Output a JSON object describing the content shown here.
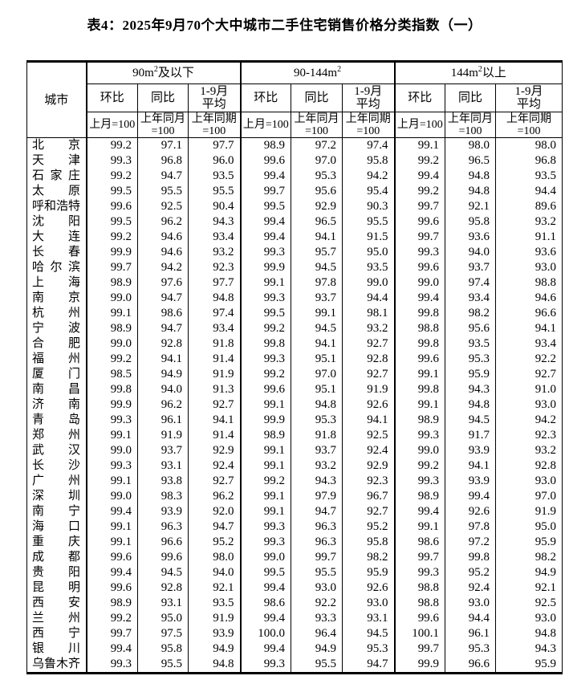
{
  "title": "表4：2025年9月70个大中城市二手住宅销售价格分类指数（一）",
  "table": {
    "city_header": "城市",
    "groups": [
      {
        "base": "90m",
        "sup": "2",
        "rest": "及以下"
      },
      {
        "base": "90-144m",
        "sup": "2",
        "rest": ""
      },
      {
        "base": "144m",
        "sup": "2",
        "rest": "以上"
      }
    ],
    "col_headers": {
      "mom": "环比",
      "yoy": "同比",
      "avg_l1": "1-9月",
      "avg_l2": "平均",
      "mom_base": "上月=100",
      "yoy_base_l1": "上年同月",
      "yoy_base_l2": "=100",
      "avg_base_l1": "上年同期",
      "avg_base_l2": "=100"
    },
    "rows": [
      {
        "city": "北京",
        "values": [
          "99.2",
          "97.1",
          "97.7",
          "98.9",
          "97.2",
          "97.4",
          "99.1",
          "98.0",
          "98.0"
        ]
      },
      {
        "city": "天津",
        "values": [
          "99.3",
          "96.8",
          "96.0",
          "99.6",
          "97.0",
          "95.8",
          "99.2",
          "96.5",
          "96.8"
        ]
      },
      {
        "city": "石家庄",
        "values": [
          "99.2",
          "94.7",
          "93.5",
          "99.4",
          "95.3",
          "94.2",
          "99.4",
          "94.8",
          "93.5"
        ]
      },
      {
        "city": "太原",
        "values": [
          "99.5",
          "95.5",
          "95.5",
          "99.7",
          "95.6",
          "95.4",
          "99.2",
          "94.8",
          "94.4"
        ]
      },
      {
        "city": "呼和浩特",
        "values": [
          "99.6",
          "92.5",
          "90.4",
          "99.5",
          "92.9",
          "90.3",
          "99.7",
          "92.1",
          "89.6"
        ]
      },
      {
        "city": "沈阳",
        "values": [
          "99.5",
          "96.2",
          "94.3",
          "99.4",
          "96.5",
          "95.5",
          "99.6",
          "95.8",
          "93.2"
        ]
      },
      {
        "city": "大连",
        "values": [
          "99.2",
          "94.6",
          "93.4",
          "99.4",
          "94.1",
          "91.5",
          "99.7",
          "93.6",
          "91.1"
        ]
      },
      {
        "city": "长春",
        "values": [
          "99.9",
          "94.6",
          "93.2",
          "99.3",
          "95.7",
          "95.0",
          "99.3",
          "94.0",
          "93.6"
        ]
      },
      {
        "city": "哈尔滨",
        "values": [
          "99.7",
          "94.2",
          "92.3",
          "99.9",
          "94.5",
          "93.5",
          "99.6",
          "93.7",
          "93.0"
        ]
      },
      {
        "city": "上海",
        "values": [
          "98.9",
          "97.6",
          "97.7",
          "99.1",
          "97.8",
          "99.0",
          "99.0",
          "97.4",
          "98.8"
        ]
      },
      {
        "city": "南京",
        "values": [
          "99.0",
          "94.7",
          "94.8",
          "99.3",
          "93.7",
          "94.4",
          "99.4",
          "93.4",
          "94.6"
        ]
      },
      {
        "city": "杭州",
        "values": [
          "99.1",
          "98.6",
          "97.4",
          "99.5",
          "99.1",
          "98.1",
          "99.8",
          "98.2",
          "96.6"
        ]
      },
      {
        "city": "宁波",
        "values": [
          "98.9",
          "94.7",
          "93.4",
          "99.2",
          "94.5",
          "93.2",
          "98.8",
          "95.6",
          "94.1"
        ]
      },
      {
        "city": "合肥",
        "values": [
          "99.0",
          "92.8",
          "91.8",
          "99.8",
          "94.1",
          "92.7",
          "99.8",
          "93.5",
          "93.4"
        ]
      },
      {
        "city": "福州",
        "values": [
          "99.2",
          "94.1",
          "91.4",
          "99.3",
          "95.1",
          "92.8",
          "99.6",
          "95.3",
          "92.2"
        ]
      },
      {
        "city": "厦门",
        "values": [
          "98.5",
          "94.9",
          "91.9",
          "99.2",
          "97.0",
          "92.7",
          "99.1",
          "95.9",
          "92.7"
        ]
      },
      {
        "city": "南昌",
        "values": [
          "99.8",
          "94.0",
          "91.3",
          "99.6",
          "95.1",
          "91.9",
          "99.8",
          "94.3",
          "91.0"
        ]
      },
      {
        "city": "济南",
        "values": [
          "99.9",
          "96.2",
          "92.7",
          "99.1",
          "94.8",
          "92.6",
          "99.1",
          "94.8",
          "93.0"
        ]
      },
      {
        "city": "青岛",
        "values": [
          "99.3",
          "96.1",
          "94.1",
          "99.9",
          "95.3",
          "94.1",
          "98.9",
          "94.5",
          "94.2"
        ]
      },
      {
        "city": "郑州",
        "values": [
          "99.1",
          "91.9",
          "91.4",
          "98.9",
          "91.8",
          "92.5",
          "99.3",
          "91.7",
          "92.3"
        ]
      },
      {
        "city": "武汉",
        "values": [
          "99.0",
          "93.7",
          "92.9",
          "99.1",
          "93.7",
          "92.4",
          "99.0",
          "93.9",
          "93.2"
        ]
      },
      {
        "city": "长沙",
        "values": [
          "99.3",
          "93.1",
          "92.4",
          "99.1",
          "93.2",
          "92.9",
          "99.2",
          "94.1",
          "92.8"
        ]
      },
      {
        "city": "广州",
        "values": [
          "99.1",
          "93.8",
          "92.7",
          "99.2",
          "94.3",
          "92.3",
          "99.3",
          "93.9",
          "93.0"
        ]
      },
      {
        "city": "深圳",
        "values": [
          "99.0",
          "98.3",
          "96.2",
          "99.1",
          "97.9",
          "96.7",
          "98.9",
          "99.4",
          "97.0"
        ]
      },
      {
        "city": "南宁",
        "values": [
          "99.4",
          "93.9",
          "92.0",
          "99.1",
          "94.7",
          "92.7",
          "99.4",
          "92.6",
          "91.9"
        ]
      },
      {
        "city": "海口",
        "values": [
          "99.1",
          "96.3",
          "94.7",
          "99.3",
          "96.3",
          "95.2",
          "99.1",
          "97.8",
          "95.0"
        ]
      },
      {
        "city": "重庆",
        "values": [
          "99.1",
          "96.6",
          "95.2",
          "99.3",
          "96.3",
          "95.8",
          "98.6",
          "97.2",
          "95.9"
        ]
      },
      {
        "city": "成都",
        "values": [
          "99.6",
          "99.6",
          "98.0",
          "99.0",
          "99.7",
          "98.2",
          "99.7",
          "99.8",
          "98.2"
        ]
      },
      {
        "city": "贵阳",
        "values": [
          "99.4",
          "94.5",
          "94.0",
          "99.5",
          "95.5",
          "95.9",
          "99.3",
          "95.2",
          "94.9"
        ]
      },
      {
        "city": "昆明",
        "values": [
          "99.6",
          "92.8",
          "92.1",
          "99.4",
          "93.0",
          "92.6",
          "98.8",
          "92.4",
          "92.1"
        ]
      },
      {
        "city": "西安",
        "values": [
          "98.9",
          "93.1",
          "93.5",
          "98.6",
          "92.2",
          "93.0",
          "98.8",
          "93.0",
          "92.5"
        ]
      },
      {
        "city": "兰州",
        "values": [
          "99.2",
          "95.0",
          "91.9",
          "99.4",
          "93.3",
          "93.1",
          "99.6",
          "94.4",
          "93.0"
        ]
      },
      {
        "city": "西宁",
        "values": [
          "99.7",
          "97.5",
          "93.9",
          "100.0",
          "96.4",
          "94.5",
          "100.1",
          "96.1",
          "94.8"
        ]
      },
      {
        "city": "银川",
        "values": [
          "99.4",
          "95.8",
          "94.9",
          "99.4",
          "94.9",
          "95.3",
          "99.7",
          "95.3",
          "94.3"
        ]
      },
      {
        "city": "乌鲁木齐",
        "values": [
          "99.3",
          "95.5",
          "94.8",
          "99.3",
          "95.5",
          "94.7",
          "99.9",
          "96.6",
          "95.9"
        ]
      }
    ]
  }
}
